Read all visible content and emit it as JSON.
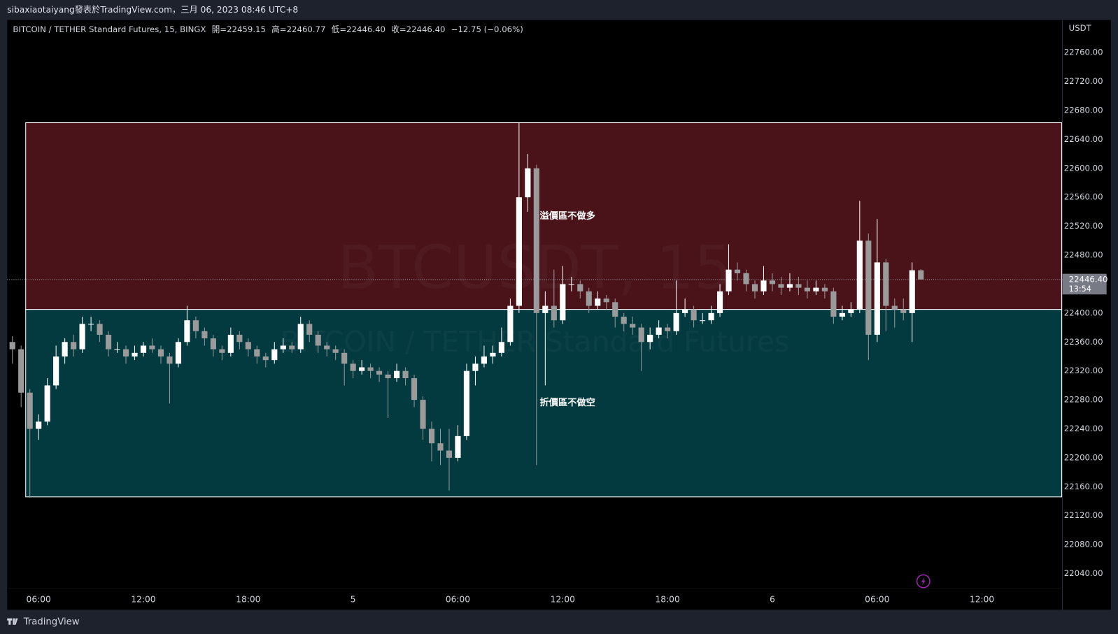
{
  "header": "sibaxiaotaiyang發表於TradingView.com，三月 06, 2023 08:46 UTC+8",
  "footer": "TradingView",
  "chart_data": {
    "type": "candlestick",
    "symbol": "BITCOIN / TETHER Standard Futures, 15, BINGX",
    "ohlc_labels": [
      "開=22459.15",
      "高=22460.77",
      "低=22446.40",
      "收=22446.40",
      "−12.75 (−0.06%)"
    ],
    "currency": "USDT",
    "watermark": [
      "BTCUSDT, 15",
      "BITCOIN / TETHER Standard Futures"
    ],
    "last_price": {
      "value": 22446.4,
      "label": "22446.40",
      "countdown": "13:54"
    },
    "up_color": "#ffffff",
    "down_color": "#9a9a9a",
    "grid": false,
    "xlim": [
      -0.6,
      120.2
    ],
    "xticks": [
      {
        "value": 3,
        "label": "06:00"
      },
      {
        "value": 15,
        "label": "12:00"
      },
      {
        "value": 27,
        "label": "18:00"
      },
      {
        "value": 39,
        "label": "5"
      },
      {
        "value": 51,
        "label": "06:00"
      },
      {
        "value": 63,
        "label": "12:00"
      },
      {
        "value": 75,
        "label": "18:00"
      },
      {
        "value": 87,
        "label": "6"
      },
      {
        "value": 99,
        "label": "06:00"
      },
      {
        "value": 111,
        "label": "12:00"
      }
    ],
    "ylim": [
      21990,
      22805
    ],
    "yticks": [
      {
        "value": 22040,
        "label": "22040.00"
      },
      {
        "value": 22080,
        "label": "22080.00"
      },
      {
        "value": 22120,
        "label": "22120.00"
      },
      {
        "value": 22160,
        "label": "22160.00"
      },
      {
        "value": 22200,
        "label": "22200.00"
      },
      {
        "value": 22240,
        "label": "22240.00"
      },
      {
        "value": 22280,
        "label": "22280.00"
      },
      {
        "value": 22320,
        "label": "22320.00"
      },
      {
        "value": 22360,
        "label": "22360.00"
      },
      {
        "value": 22400,
        "label": "22400.00"
      },
      {
        "value": 22440,
        "label": "22440.00"
      },
      {
        "value": 22480,
        "label": "22480.00"
      },
      {
        "value": 22520,
        "label": "22520.00"
      },
      {
        "value": 22560,
        "label": "22560.00"
      },
      {
        "value": 22600,
        "label": "22600.00"
      },
      {
        "value": 22640,
        "label": "22640.00"
      },
      {
        "value": 22680,
        "label": "22680.00"
      },
      {
        "value": 22720,
        "label": "22720.00"
      },
      {
        "value": 22760,
        "label": "22760.00"
      }
    ],
    "zones": [
      {
        "label": "溢價區不做多",
        "top": 22663,
        "bottom": 22405,
        "color": "#4a1219"
      },
      {
        "label": "折價區不做空",
        "top": 22405,
        "bottom": 22146,
        "color": "#033a40"
      }
    ],
    "open": [
      22360,
      22350,
      22290,
      22240,
      22250,
      22300,
      22340,
      22360,
      22350,
      22385,
      22385,
      22370,
      22350,
      22350,
      22340,
      22345,
      22355,
      22350,
      22340,
      22330,
      22360,
      22390,
      22375,
      22365,
      22350,
      22345,
      22370,
      22360,
      22350,
      22340,
      22335,
      22350,
      22355,
      22350,
      22385,
      22370,
      22355,
      22350,
      22345,
      22330,
      22320,
      22325,
      22320,
      22315,
      22310,
      22320,
      22310,
      22280,
      22240,
      22220,
      22210,
      22200,
      22230,
      22320,
      22330,
      22340,
      22345,
      22360,
      22410,
      22560,
      22600,
      22400,
      22410,
      22390,
      22440,
      22440,
      22430,
      22410,
      22420,
      22415,
      22395,
      22385,
      22380,
      22360,
      22370,
      22380,
      22375,
      22400,
      22405,
      22390,
      22390,
      22400,
      22430,
      22460,
      22455,
      22440,
      22430,
      22445,
      22440,
      22435,
      22440,
      22435,
      22430,
      22435,
      22430,
      22395,
      22400,
      22405,
      22500,
      22370,
      22470,
      22410,
      22405,
      22400,
      22459.15
    ],
    "high": [
      22368,
      22355,
      22295,
      22260,
      22310,
      22355,
      22365,
      22370,
      22395,
      22395,
      22390,
      22375,
      22360,
      22355,
      22355,
      22360,
      22365,
      22355,
      22345,
      22365,
      22410,
      22395,
      22380,
      22370,
      22355,
      22380,
      22375,
      22365,
      22355,
      22345,
      22360,
      22365,
      22360,
      22395,
      22390,
      22375,
      22360,
      22355,
      22350,
      22335,
      22335,
      22330,
      22325,
      22320,
      22330,
      22325,
      22315,
      22285,
      22250,
      22240,
      22240,
      22245,
      22330,
      22340,
      22355,
      22355,
      22380,
      22420,
      22663,
      22620,
      22605,
      22430,
      22460,
      22465,
      22450,
      22445,
      22435,
      22430,
      22425,
      22420,
      22400,
      22395,
      22385,
      22380,
      22390,
      22385,
      22445,
      22420,
      22410,
      22400,
      22410,
      22440,
      22495,
      22470,
      22460,
      22445,
      22465,
      22455,
      22450,
      22455,
      22450,
      22445,
      22445,
      22440,
      22435,
      22410,
      22415,
      22555,
      22510,
      22530,
      22475,
      22420,
      22420,
      22470,
      22460.77
    ],
    "low": [
      22330,
      22270,
      22145,
      22225,
      22245,
      22295,
      22330,
      22340,
      22345,
      22375,
      22360,
      22340,
      22345,
      22330,
      22335,
      22340,
      22345,
      22330,
      22275,
      22325,
      22355,
      22365,
      22355,
      22340,
      22335,
      22340,
      22350,
      22340,
      22330,
      22325,
      22330,
      22345,
      22345,
      22345,
      22360,
      22345,
      22340,
      22335,
      22300,
      22310,
      22315,
      22310,
      22305,
      22255,
      22305,
      22300,
      22270,
      22225,
      22195,
      22190,
      22155,
      22195,
      22225,
      22300,
      22325,
      22330,
      22340,
      22355,
      22400,
      22540,
      22190,
      22300,
      22380,
      22385,
      22430,
      22420,
      22400,
      22405,
      22405,
      22380,
      22375,
      22370,
      22320,
      22350,
      22365,
      22365,
      22370,
      22395,
      22380,
      22385,
      22385,
      22395,
      22425,
      22445,
      22430,
      22420,
      22425,
      22430,
      22425,
      22430,
      22425,
      22420,
      22425,
      22420,
      22385,
      22390,
      22395,
      22400,
      22335,
      22360,
      22375,
      22380,
      22390,
      22360,
      22446.4
    ],
    "close": [
      22350,
      22290,
      22240,
      22250,
      22300,
      22340,
      22360,
      22350,
      22385,
      22385,
      22370,
      22350,
      22350,
      22340,
      22345,
      22355,
      22350,
      22340,
      22330,
      22360,
      22390,
      22375,
      22365,
      22350,
      22345,
      22370,
      22360,
      22350,
      22340,
      22335,
      22350,
      22355,
      22350,
      22385,
      22370,
      22355,
      22350,
      22345,
      22330,
      22320,
      22325,
      22320,
      22315,
      22310,
      22320,
      22310,
      22280,
      22240,
      22220,
      22210,
      22200,
      22230,
      22320,
      22330,
      22340,
      22345,
      22360,
      22410,
      22560,
      22600,
      22400,
      22410,
      22390,
      22440,
      22440,
      22430,
      22410,
      22420,
      22415,
      22395,
      22385,
      22380,
      22360,
      22370,
      22380,
      22375,
      22400,
      22405,
      22390,
      22390,
      22400,
      22430,
      22460,
      22455,
      22440,
      22430,
      22445,
      22440,
      22435,
      22440,
      22435,
      22430,
      22435,
      22430,
      22395,
      22400,
      22405,
      22500,
      22370,
      22470,
      22410,
      22405,
      22400,
      22459.15,
      22446.4
    ]
  }
}
